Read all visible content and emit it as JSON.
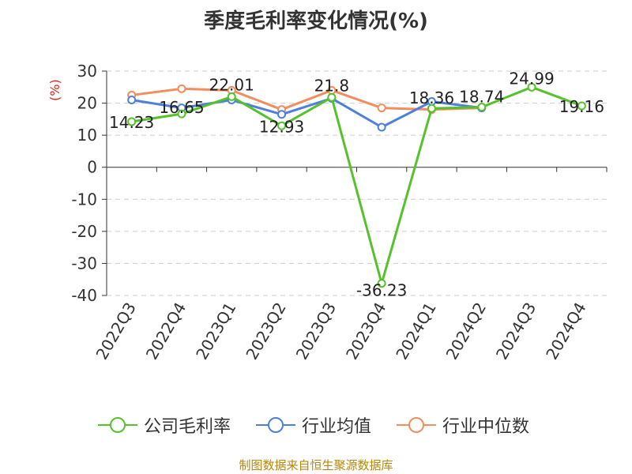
{
  "title": "季度毛利率变化情况(%)",
  "source": "制图数据来自恒生聚源数据库",
  "chart_data": {
    "type": "line",
    "title": "季度毛利率变化情况(%)",
    "ylabel": "(%)",
    "xlabel": "",
    "categories": [
      "2022Q3",
      "2022Q4",
      "2023Q1",
      "2023Q2",
      "2023Q3",
      "2023Q4",
      "2024Q1",
      "2024Q2",
      "2024Q3",
      "2024Q4"
    ],
    "ylim": [
      -40,
      30
    ],
    "yticks": [
      30,
      20,
      10,
      0,
      -10,
      -20,
      -30,
      -40
    ],
    "grid": true,
    "legend_position": "bottom",
    "series": [
      {
        "name": "公司毛利率",
        "color": "#55c22b",
        "values": [
          14.23,
          16.65,
          22.01,
          12.93,
          21.8,
          -36.23,
          18.36,
          18.74,
          24.99,
          19.16
        ],
        "labels": [
          "14.23",
          "16.65",
          "22.01",
          "12.93",
          "21.8",
          "-36.23",
          "18.36",
          "18.74",
          "24.99",
          "19.16"
        ]
      },
      {
        "name": "行业均值",
        "color": "#4e7fdc",
        "values": [
          21,
          18.5,
          21,
          16.5,
          21.5,
          12.5,
          20.5,
          18.5,
          null,
          null
        ]
      },
      {
        "name": "行业中位数",
        "color": "#f28d5c",
        "values": [
          22.5,
          24.5,
          24,
          18,
          24,
          18.5,
          18,
          18.5,
          null,
          null
        ]
      }
    ]
  }
}
